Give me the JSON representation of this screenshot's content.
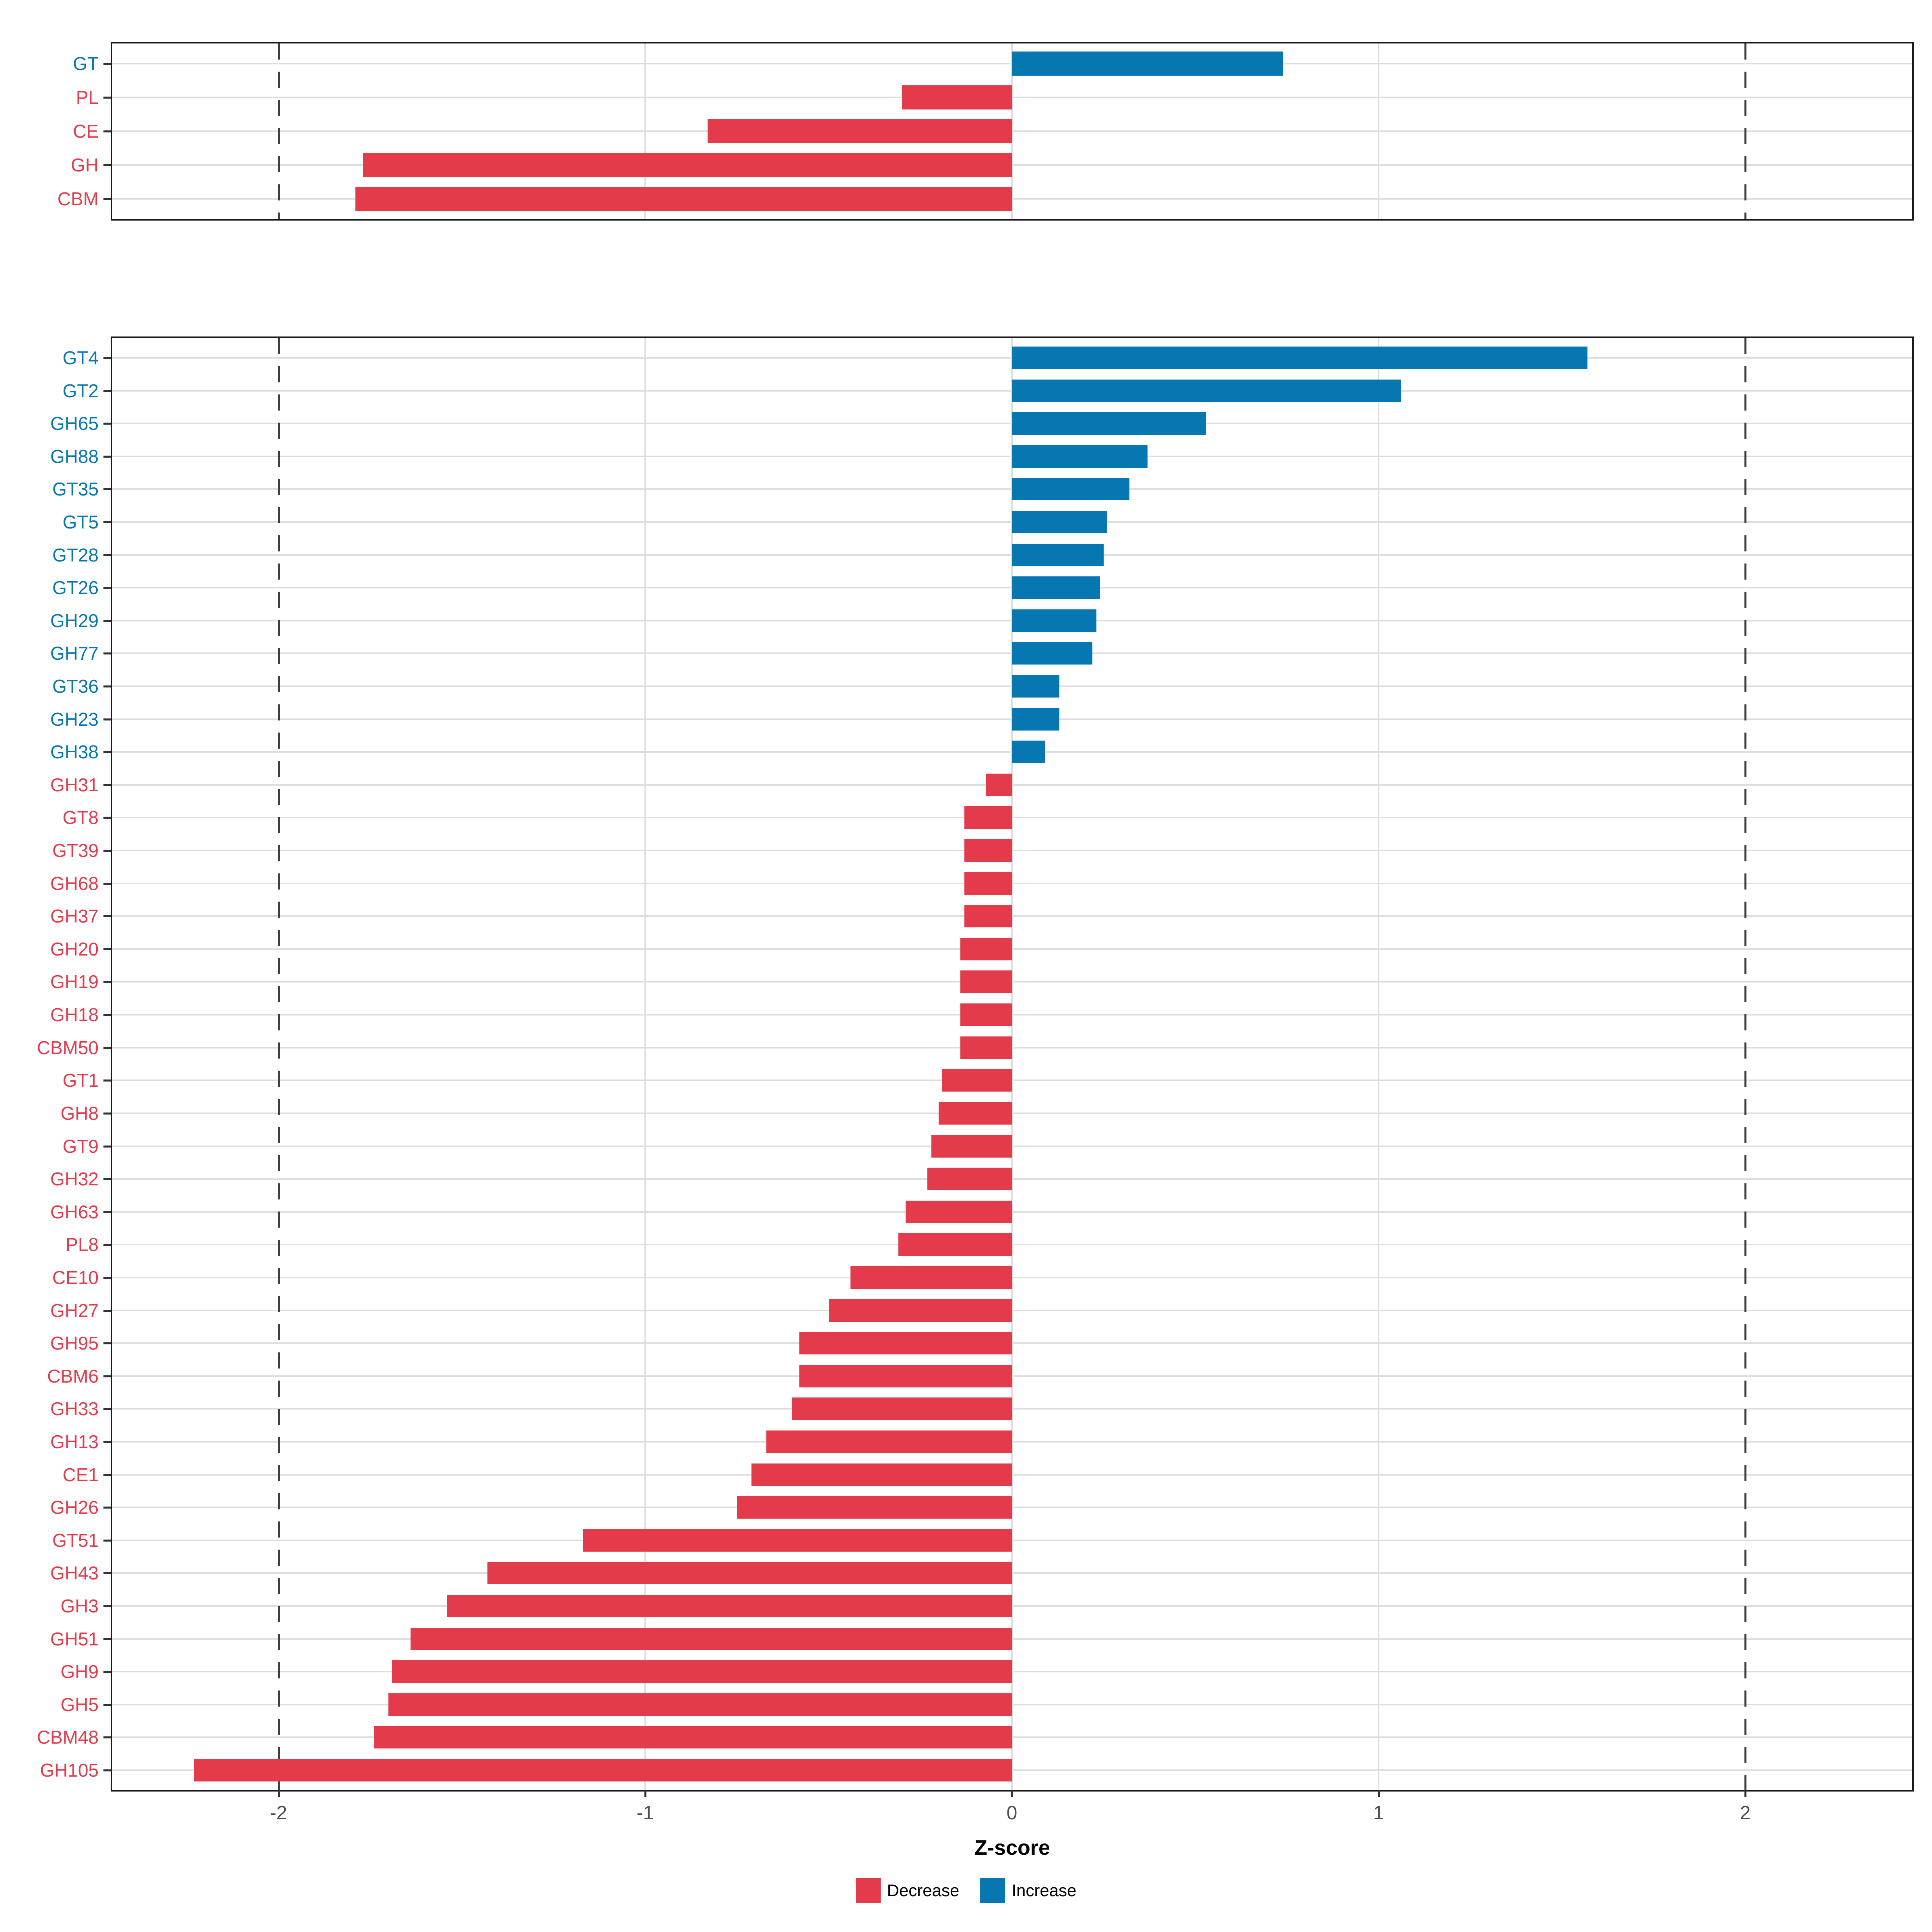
{
  "chart_data": {
    "type": "bar",
    "orientation": "horizontal",
    "title": "",
    "xlabel": "Z-score",
    "x_ticks": [
      "-2",
      "-1",
      "0",
      "1",
      "2"
    ],
    "x_tick_values": [
      -2,
      -1,
      0,
      1,
      2
    ],
    "x_range": [
      -2.45,
      2.45
    ],
    "dashed_reference_lines": [
      -2,
      2
    ],
    "grid": true,
    "legend_position": "bottom",
    "legend": [
      {
        "label": "Decrease",
        "color": "#e33b4c"
      },
      {
        "label": "Increase",
        "color": "#0777b1"
      }
    ],
    "panels": [
      {
        "name": "class-summary",
        "categories": [
          "GT",
          "PL",
          "CE",
          "GH",
          "CBM"
        ],
        "values": [
          0.74,
          -0.3,
          -0.83,
          -1.77,
          -1.79
        ]
      },
      {
        "name": "families",
        "categories": [
          "GT4",
          "GT2",
          "GH65",
          "GH88",
          "GT35",
          "GT5",
          "GT28",
          "GT26",
          "GH29",
          "GH77",
          "GT36",
          "GH23",
          "GH38",
          "GH31",
          "GT8",
          "GT39",
          "GH68",
          "GH37",
          "GH20",
          "GH19",
          "GH18",
          "CBM50",
          "GT1",
          "GH8",
          "GT9",
          "GH32",
          "GH63",
          "PL8",
          "CE10",
          "GH27",
          "GH95",
          "CBM6",
          "GH33",
          "GH13",
          "CE1",
          "GH26",
          "GT51",
          "GH43",
          "GH3",
          "GH51",
          "GH9",
          "GH5",
          "CBM48",
          "GH105"
        ],
        "values": [
          1.57,
          1.06,
          0.53,
          0.37,
          0.32,
          0.26,
          0.25,
          0.24,
          0.23,
          0.22,
          0.13,
          0.13,
          0.09,
          -0.07,
          -0.13,
          -0.13,
          -0.13,
          -0.13,
          -0.14,
          -0.14,
          -0.14,
          -0.14,
          -0.19,
          -0.2,
          -0.22,
          -0.23,
          -0.29,
          -0.31,
          -0.44,
          -0.5,
          -0.58,
          -0.58,
          -0.6,
          -0.67,
          -0.71,
          -0.75,
          -1.17,
          -1.43,
          -1.54,
          -1.64,
          -1.69,
          -1.7,
          -1.74,
          -2.23
        ]
      }
    ],
    "colors": {
      "decrease": "#e33b4c",
      "increase": "#0777b1",
      "gridline": "#dedede",
      "panel_border": "#1a1a1a",
      "tick_label": "#4d4d4d",
      "dashed_line": "#3f3f3f",
      "background": "#ffffff"
    }
  }
}
